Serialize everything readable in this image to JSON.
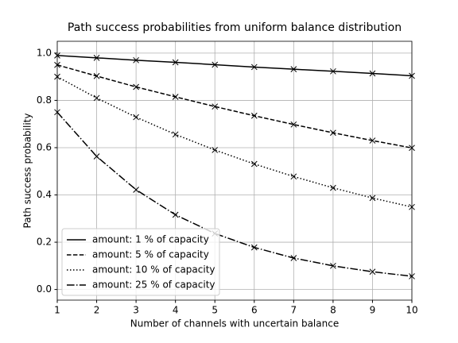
{
  "chart_data": {
    "type": "line",
    "title": "Path success probabilities from uniform balance distribution",
    "x_label": "Number of channels with uncertain balance",
    "y_label": "Path success probability",
    "x": [
      1,
      2,
      3,
      4,
      5,
      6,
      7,
      8,
      9,
      10
    ],
    "series": [
      {
        "name": "amount: 1 % of capacity",
        "color": "#000000",
        "linestyle": "solid",
        "marker": "x",
        "values": [
          0.99,
          0.98,
          0.97,
          0.961,
          0.951,
          0.941,
          0.932,
          0.923,
          0.914,
          0.904
        ]
      },
      {
        "name": "amount: 5 % of capacity",
        "color": "#000000",
        "linestyle": "dashed",
        "marker": "x",
        "values": [
          0.95,
          0.903,
          0.857,
          0.815,
          0.774,
          0.735,
          0.698,
          0.663,
          0.63,
          0.599
        ]
      },
      {
        "name": "amount: 10 % of capacity",
        "color": "#000000",
        "linestyle": "dotted",
        "marker": "x",
        "values": [
          0.9,
          0.81,
          0.729,
          0.656,
          0.59,
          0.531,
          0.478,
          0.43,
          0.387,
          0.349
        ]
      },
      {
        "name": "amount: 25 % of capacity",
        "color": "#000000",
        "linestyle": "dashdot",
        "marker": "x",
        "values": [
          0.75,
          0.563,
          0.422,
          0.316,
          0.237,
          0.178,
          0.133,
          0.1,
          0.075,
          0.056
        ]
      }
    ],
    "xlim": [
      1,
      10
    ],
    "xticks": [
      1,
      2,
      3,
      4,
      5,
      6,
      7,
      8,
      9,
      10
    ],
    "ylim": [
      -0.045,
      1.05
    ],
    "yticks": [
      {
        "value": 0,
        "label": "0.0"
      },
      {
        "value": 0.2,
        "label": "0.2"
      },
      {
        "value": 0.4,
        "label": "0.4"
      },
      {
        "value": 0.6,
        "label": "0.6"
      },
      {
        "value": 0.8,
        "label": "0.8"
      },
      {
        "value": 1,
        "label": "1.0"
      }
    ],
    "grid": true,
    "legend": "lower left"
  }
}
